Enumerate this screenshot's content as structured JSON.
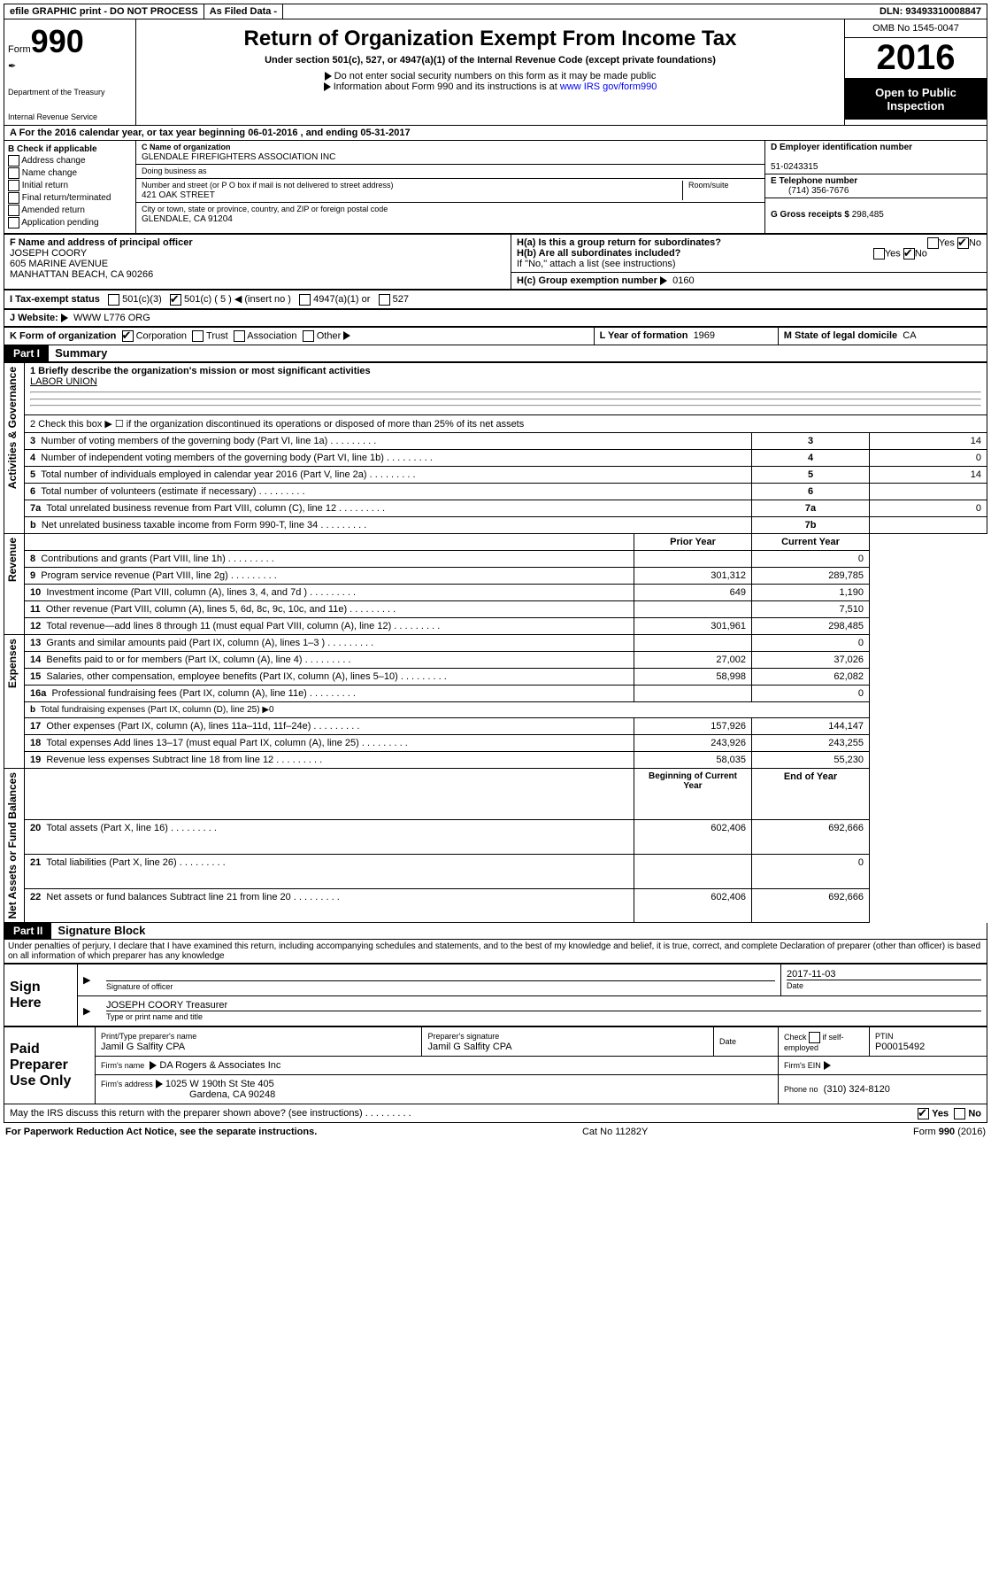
{
  "topbar": {
    "efile": "efile GRAPHIC print - DO NOT PROCESS",
    "asfiled": "As Filed Data -",
    "dln_lbl": "DLN:",
    "dln": "93493310008847"
  },
  "header": {
    "form_prefix": "Form",
    "form_no": "990",
    "dept1": "Department of the Treasury",
    "dept2": "Internal Revenue Service",
    "title": "Return of Organization Exempt From Income Tax",
    "subtitle": "Under section 501(c), 527, or 4947(a)(1) of the Internal Revenue Code (except private foundations)",
    "bullet1": "Do not enter social security numbers on this form as it may be made public",
    "bullet2_pre": "Information about Form 990 and its instructions is at ",
    "bullet2_link": "www IRS gov/form990",
    "omb": "OMB No 1545-0047",
    "year": "2016",
    "open": "Open to Public Inspection"
  },
  "rowA": "A  For the 2016 calendar year, or tax year beginning 06-01-2016   , and ending 05-31-2017",
  "B": {
    "hdr": "B Check if applicable",
    "c1": "Address change",
    "c2": "Name change",
    "c3": "Initial return",
    "c4": "Final return/terminated",
    "c5": "Amended return",
    "c6": "Application pending"
  },
  "C": {
    "name_lbl": "C Name of organization",
    "name": "GLENDALE FIREFIGHTERS ASSOCIATION INC",
    "dba_lbl": "Doing business as",
    "street_lbl": "Number and street (or P O  box if mail is not delivered to street address)",
    "room_lbl": "Room/suite",
    "street": "421 OAK STREET",
    "city_lbl": "City or town, state or province, country, and ZIP or foreign postal code",
    "city": "GLENDALE, CA  91204"
  },
  "D": {
    "lbl": "D Employer identification number",
    "val": "51-0243315"
  },
  "E": {
    "lbl": "E Telephone number",
    "val": "(714) 356-7676"
  },
  "G": {
    "lbl": "G Gross receipts $",
    "val": "298,485"
  },
  "F": {
    "lbl": "F  Name and address of principal officer",
    "l1": "JOSEPH COORY",
    "l2": "605 MARINE AVENUE",
    "l3": "MANHATTAN BEACH, CA  90266"
  },
  "H": {
    "a": "H(a)  Is this a group return for subordinates?",
    "b": "H(b)  Are all subordinates included?",
    "note": "If \"No,\" attach a list  (see instructions)",
    "c": "H(c)  Group exemption number",
    "c_val": "0160",
    "yes": "Yes",
    "no": "No"
  },
  "I": {
    "lbl": "I   Tax-exempt status",
    "o1": "501(c)(3)",
    "o2": "501(c) ( 5 )",
    "o2_hint": "(insert no )",
    "o3": "4947(a)(1) or",
    "o4": "527"
  },
  "J": {
    "lbl": "J   Website:",
    "val": "WWW L776 ORG"
  },
  "K": {
    "lbl": "K Form of organization",
    "o1": "Corporation",
    "o2": "Trust",
    "o3": "Association",
    "o4": "Other"
  },
  "L": {
    "lbl": "L Year of formation",
    "val": "1969"
  },
  "M": {
    "lbl": "M State of legal domicile",
    "val": "CA"
  },
  "part1": {
    "hdr": "Part I",
    "title": "Summary"
  },
  "sections": {
    "gov": "Activities & Governance",
    "rev": "Revenue",
    "exp": "Expenses",
    "net": "Net Assets or Fund Balances"
  },
  "summary": {
    "l1": "1 Briefly describe the organization's mission or most significant activities",
    "l1v": "LABOR UNION",
    "l2": "2  Check this box ▶ ☐  if the organization discontinued its operations or disposed of more than 25% of its net assets",
    "rows_gov": [
      {
        "n": "3",
        "t": "Number of voting members of the governing body (Part VI, line 1a)",
        "k": "3",
        "v": "14"
      },
      {
        "n": "4",
        "t": "Number of independent voting members of the governing body (Part VI, line 1b)",
        "k": "4",
        "v": "0"
      },
      {
        "n": "5",
        "t": "Total number of individuals employed in calendar year 2016 (Part V, line 2a)",
        "k": "5",
        "v": "14"
      },
      {
        "n": "6",
        "t": "Total number of volunteers (estimate if necessary)",
        "k": "6",
        "v": ""
      },
      {
        "n": "7a",
        "t": "Total unrelated business revenue from Part VIII, column (C), line 12",
        "k": "7a",
        "v": "0"
      },
      {
        "n": "b",
        "t": "Net unrelated business taxable income from Form 990-T, line 34",
        "k": "7b",
        "v": ""
      }
    ],
    "col_prior": "Prior Year",
    "col_curr": "Current Year",
    "rows_rev": [
      {
        "n": "8",
        "t": "Contributions and grants (Part VIII, line 1h)",
        "p": "",
        "c": "0"
      },
      {
        "n": "9",
        "t": "Program service revenue (Part VIII, line 2g)",
        "p": "301,312",
        "c": "289,785"
      },
      {
        "n": "10",
        "t": "Investment income (Part VIII, column (A), lines 3, 4, and 7d )",
        "p": "649",
        "c": "1,190"
      },
      {
        "n": "11",
        "t": "Other revenue (Part VIII, column (A), lines 5, 6d, 8c, 9c, 10c, and 11e)",
        "p": "",
        "c": "7,510"
      },
      {
        "n": "12",
        "t": "Total revenue—add lines 8 through 11 (must equal Part VIII, column (A), line 12)",
        "p": "301,961",
        "c": "298,485"
      }
    ],
    "rows_exp": [
      {
        "n": "13",
        "t": "Grants and similar amounts paid (Part IX, column (A), lines 1–3 )",
        "p": "",
        "c": "0"
      },
      {
        "n": "14",
        "t": "Benefits paid to or for members (Part IX, column (A), line 4)",
        "p": "27,002",
        "c": "37,026"
      },
      {
        "n": "15",
        "t": "Salaries, other compensation, employee benefits (Part IX, column (A), lines 5–10)",
        "p": "58,998",
        "c": "62,082"
      },
      {
        "n": "16a",
        "t": "Professional fundraising fees (Part IX, column (A), line 11e)",
        "p": "",
        "c": "0"
      },
      {
        "n": "b",
        "t": "Total fundraising expenses (Part IX, column (D), line 25) ▶0",
        "p": "—",
        "c": "—"
      },
      {
        "n": "17",
        "t": "Other expenses (Part IX, column (A), lines 11a–11d, 11f–24e)",
        "p": "157,926",
        "c": "144,147"
      },
      {
        "n": "18",
        "t": "Total expenses  Add lines 13–17 (must equal Part IX, column (A), line 25)",
        "p": "243,926",
        "c": "243,255"
      },
      {
        "n": "19",
        "t": "Revenue less expenses  Subtract line 18 from line 12",
        "p": "58,035",
        "c": "55,230"
      }
    ],
    "col_beg": "Beginning of Current Year",
    "col_end": "End of Year",
    "rows_net": [
      {
        "n": "20",
        "t": "Total assets (Part X, line 16)",
        "p": "602,406",
        "c": "692,666"
      },
      {
        "n": "21",
        "t": "Total liabilities (Part X, line 26)",
        "p": "",
        "c": "0"
      },
      {
        "n": "22",
        "t": "Net assets or fund balances  Subtract line 21 from line 20",
        "p": "602,406",
        "c": "692,666"
      }
    ]
  },
  "part2": {
    "hdr": "Part II",
    "title": "Signature Block",
    "decl": "Under penalties of perjury, I declare that I have examined this return, including accompanying schedules and statements, and to the best of my knowledge and belief, it is true, correct, and complete  Declaration of preparer (other than officer) is based on all information of which preparer has any knowledge"
  },
  "sign": {
    "lbl": "Sign Here",
    "date": "2017-11-03",
    "sig_lbl": "Signature of officer",
    "date_lbl": "Date",
    "name": "JOSEPH COORY Treasurer",
    "name_lbl": "Type or print name and title"
  },
  "paid": {
    "lbl": "Paid Preparer Use Only",
    "h1": "Print/Type preparer's name",
    "v1": "Jamil G Salfity CPA",
    "h2": "Preparer's signature",
    "v2": "Jamil G Salfity CPA",
    "h3": "Date",
    "h4_pre": "Check",
    "h4_post": "if self-employed",
    "h5": "PTIN",
    "v5": "P00015492",
    "firm_lbl": "Firm's name",
    "firm": "DA Rogers & Associates Inc",
    "ein_lbl": "Firm's EIN",
    "addr_lbl": "Firm's address",
    "addr1": "1025 W 190th St Ste 405",
    "addr2": "Gardena, CA  90248",
    "phone_lbl": "Phone no",
    "phone": "(310) 324-8120"
  },
  "footer": {
    "discuss": "May the IRS discuss this return with the preparer shown above? (see instructions)",
    "yes": "Yes",
    "no": "No",
    "pra": "For Paperwork Reduction Act Notice, see the separate instructions.",
    "cat": "Cat  No  11282Y",
    "form": "Form 990 (2016)"
  }
}
